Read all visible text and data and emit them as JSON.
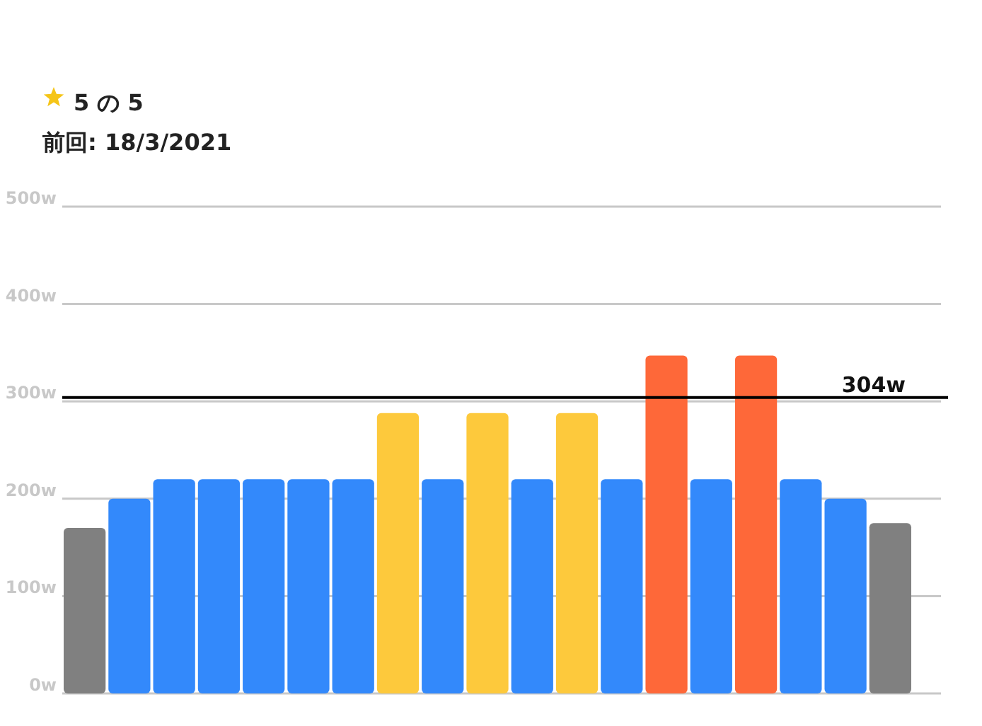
{
  "chart_data": {
    "type": "bar",
    "title": "5 の 5",
    "subtitle": "前回: 18/3/2021",
    "categories": [
      null,
      null,
      null,
      null,
      null,
      null,
      null,
      null,
      null,
      null,
      null,
      null,
      null,
      null,
      null,
      null,
      null,
      null,
      null
    ],
    "values": [
      170,
      200,
      220,
      220,
      220,
      220,
      220,
      288,
      220,
      288,
      220,
      288,
      220,
      347,
      220,
      347,
      220,
      200,
      175
    ],
    "colors": [
      "#808080",
      "#3389fb",
      "#3389fb",
      "#3389fb",
      "#3389fb",
      "#3389fb",
      "#3389fb",
      "#fdc93c",
      "#3389fb",
      "#fdc93c",
      "#3389fb",
      "#fdc93c",
      "#3389fb",
      "#fe6839",
      "#3389fb",
      "#fe6839",
      "#3389fb",
      "#3389fb",
      "#808080"
    ],
    "ylim": [
      0,
      500
    ],
    "yticks": [
      {
        "value": 0,
        "label": "0w"
      },
      {
        "value": 100,
        "label": "100w"
      },
      {
        "value": 200,
        "label": "200w"
      },
      {
        "value": 300,
        "label": "300w"
      },
      {
        "value": 400,
        "label": "400w"
      },
      {
        "value": 500,
        "label": "500w"
      }
    ],
    "grid": "y",
    "ref_lines": [
      {
        "axis": "y",
        "value": 304,
        "label": "304w",
        "color": "#000000"
      }
    ]
  }
}
